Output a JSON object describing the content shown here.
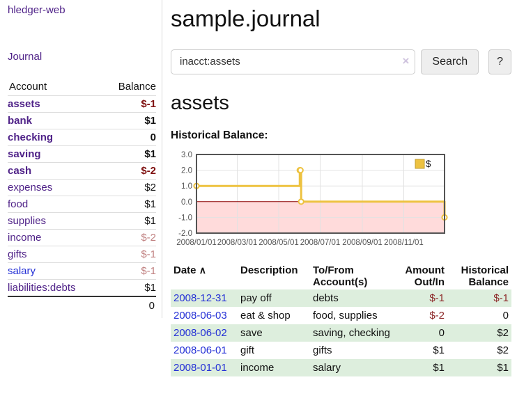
{
  "app": {
    "brand": "hledger-web",
    "nav_journal": "Journal"
  },
  "sidebar": {
    "header": {
      "account": "Account",
      "balance": "Balance"
    },
    "rows": [
      {
        "name": "assets",
        "balance": "$-1"
      },
      {
        "name": "bank",
        "balance": "$1"
      },
      {
        "name": "checking",
        "balance": "0"
      },
      {
        "name": "saving",
        "balance": "$1"
      },
      {
        "name": "cash",
        "balance": "$-2"
      },
      {
        "name": "expenses",
        "balance": "$2"
      },
      {
        "name": "food",
        "balance": "$1"
      },
      {
        "name": "supplies",
        "balance": "$1"
      },
      {
        "name": "income",
        "balance": "$-2"
      },
      {
        "name": "gifts",
        "balance": "$-1"
      },
      {
        "name": "salary",
        "balance": "$-1"
      },
      {
        "name": "liabilities:debts",
        "balance": "$1"
      }
    ],
    "total": "0"
  },
  "header": {
    "title": "sample.journal"
  },
  "search": {
    "value": "inacct:assets",
    "clear_icon": "×",
    "button_label": "Search",
    "help_label": "?"
  },
  "account_page": {
    "title": "assets",
    "chart_label": "Historical Balance:"
  },
  "chart_data": {
    "type": "line",
    "step": true,
    "title": "Historical Balance",
    "series": [
      {
        "name": "$",
        "color": "#edc240",
        "points": [
          {
            "x": "2008-01-01",
            "y": 1
          },
          {
            "x": "2008-06-01",
            "y": 2
          },
          {
            "x": "2008-06-02",
            "y": 2
          },
          {
            "x": "2008-06-03",
            "y": 0
          },
          {
            "x": "2008-12-31",
            "y": -1
          }
        ]
      }
    ],
    "xlim": [
      "2008-01-01",
      "2008-12-31"
    ],
    "ylim": [
      -2,
      3
    ],
    "y_ticks": [
      3,
      2,
      1,
      0,
      -1,
      -2
    ],
    "x_ticks": [
      "2008/01/01",
      "2008/03/01",
      "2008/05/01",
      "2008/07/01",
      "2008/09/01",
      "2008/11/01"
    ],
    "grid": true,
    "legend_position": "top-right",
    "legend_label": "$",
    "negative_region_fill": "#ffdbdb",
    "zero_line_color": "#8b0000",
    "border_color": "#545454"
  },
  "register": {
    "columns": {
      "date": "Date",
      "sort_icon": "∧",
      "description": "Description",
      "accounts_line1": "To/From",
      "accounts_line2": "Account(s)",
      "amount_line1": "Amount",
      "amount_line2": "Out/In",
      "balance_line1": "Historical",
      "balance_line2": "Balance"
    },
    "rows": [
      {
        "date": "2008-12-31",
        "description": "pay off",
        "accounts": "debts",
        "amount": "$-1",
        "balance": "$-1"
      },
      {
        "date": "2008-06-03",
        "description": "eat & shop",
        "accounts": "food, supplies",
        "amount": "$-2",
        "balance": "0"
      },
      {
        "date": "2008-06-02",
        "description": "save",
        "accounts": "saving, checking",
        "amount": "0",
        "balance": "$2"
      },
      {
        "date": "2008-06-01",
        "description": "gift",
        "accounts": "gifts",
        "amount": "$1",
        "balance": "$2"
      },
      {
        "date": "2008-01-01",
        "description": "income",
        "accounts": "salary",
        "amount": "$1",
        "balance": "$1"
      }
    ]
  }
}
